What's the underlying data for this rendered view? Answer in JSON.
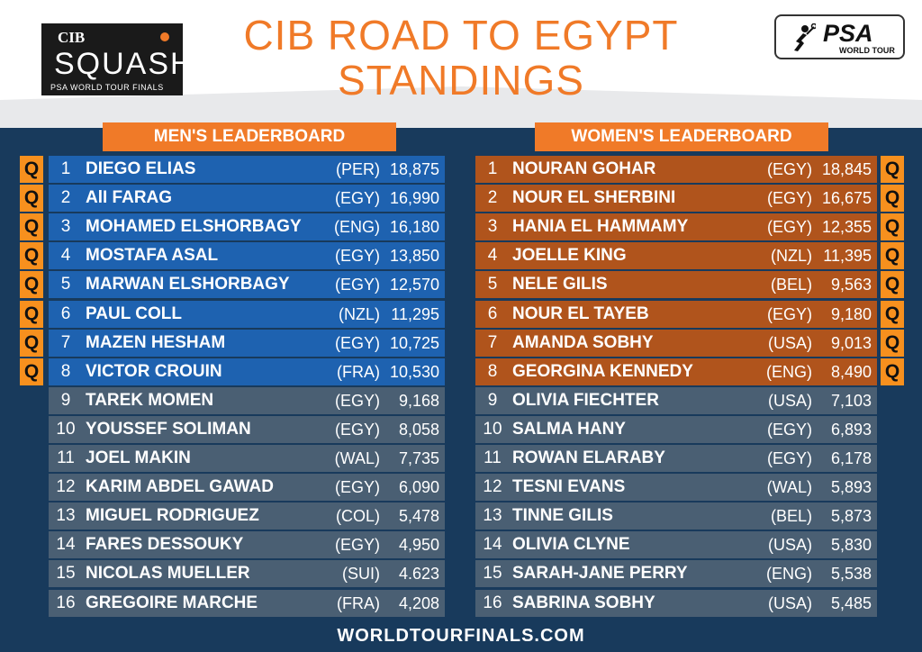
{
  "header": {
    "title_line1": "CIB ROAD TO EGYPT",
    "title_line2": "STANDINGS",
    "cib_logo": {
      "brand": "CIB",
      "word": "SQUASH",
      "subtitle": "PSA WORLD TOUR FINALS"
    },
    "psa_logo": {
      "brand": "PSA",
      "subtitle": "WORLD TOUR"
    }
  },
  "qualified_label": "Q",
  "men": {
    "title": "MEN'S LEADERBOARD",
    "rows": [
      {
        "rank": "1",
        "name": "DIEGO ELIAS",
        "country": "(PER)",
        "points": "18,875",
        "qualified": true
      },
      {
        "rank": "2",
        "name": "AlI FARAG",
        "country": "(EGY)",
        "points": "16,990",
        "qualified": true
      },
      {
        "rank": "3",
        "name": "MOHAMED ELSHORBAGY",
        "country": "(ENG)",
        "points": "16,180",
        "qualified": true
      },
      {
        "rank": "4",
        "name": "MOSTAFA ASAL",
        "country": "(EGY)",
        "points": "13,850",
        "qualified": true
      },
      {
        "rank": "5",
        "name": "MARWAN ELSHORBAGY",
        "country": "(EGY)",
        "points": "12,570",
        "qualified": true
      },
      {
        "rank": "6",
        "name": "PAUL COLL",
        "country": "(NZL)",
        "points": "11,295",
        "qualified": true
      },
      {
        "rank": "7",
        "name": "MAZEN HESHAM",
        "country": "(EGY)",
        "points": "10,725",
        "qualified": true
      },
      {
        "rank": "8",
        "name": "VICTOR CROUIN",
        "country": "(FRA)",
        "points": "10,530",
        "qualified": true
      },
      {
        "rank": "9",
        "name": "TAREK MOMEN",
        "country": "(EGY)",
        "points": "9,168",
        "qualified": false
      },
      {
        "rank": "10",
        "name": "YOUSSEF SOLIMAN",
        "country": "(EGY)",
        "points": "8,058",
        "qualified": false
      },
      {
        "rank": "11",
        "name": "JOEL MAKIN",
        "country": "(WAL)",
        "points": "7,735",
        "qualified": false
      },
      {
        "rank": "12",
        "name": "KARIM ABDEL GAWAD",
        "country": "(EGY)",
        "points": "6,090",
        "qualified": false
      },
      {
        "rank": "13",
        "name": "MIGUEL RODRIGUEZ",
        "country": "(COL)",
        "points": "5,478",
        "qualified": false
      },
      {
        "rank": "14",
        "name": "FARES DESSOUKY",
        "country": "(EGY)",
        "points": "4,950",
        "qualified": false
      },
      {
        "rank": "15",
        "name": "NICOLAS MUELLER",
        "country": "(SUI)",
        "points": "4.623",
        "qualified": false
      },
      {
        "rank": "16",
        "name": "GREGOIRE MARCHE",
        "country": "(FRA)",
        "points": "4,208",
        "qualified": false
      }
    ]
  },
  "women": {
    "title": "WOMEN'S LEADERBOARD",
    "rows": [
      {
        "rank": "1",
        "name": "NOURAN GOHAR",
        "country": "(EGY)",
        "points": "18,845",
        "qualified": true
      },
      {
        "rank": "2",
        "name": "NOUR EL SHERBINI",
        "country": "(EGY)",
        "points": "16,675",
        "qualified": true
      },
      {
        "rank": "3",
        "name": "HANIA EL HAMMAMY",
        "country": "(EGY)",
        "points": "12,355",
        "qualified": true
      },
      {
        "rank": "4",
        "name": "JOELLE KING",
        "country": "(NZL)",
        "points": "11,395",
        "qualified": true
      },
      {
        "rank": "5",
        "name": "NELE GILIS",
        "country": "(BEL)",
        "points": "9,563",
        "qualified": true
      },
      {
        "rank": "6",
        "name": "NOUR EL TAYEB",
        "country": "(EGY)",
        "points": "9,180",
        "qualified": true
      },
      {
        "rank": "7",
        "name": "AMANDA SOBHY",
        "country": "(USA)",
        "points": "9,013",
        "qualified": true
      },
      {
        "rank": "8",
        "name": "GEORGINA KENNEDY",
        "country": "(ENG)",
        "points": "8,490",
        "qualified": true
      },
      {
        "rank": "9",
        "name": "OLIVIA FIECHTER",
        "country": "(USA)",
        "points": "7,103",
        "qualified": false
      },
      {
        "rank": "10",
        "name": "SALMA HANY",
        "country": "(EGY)",
        "points": "6,893",
        "qualified": false
      },
      {
        "rank": "11",
        "name": "ROWAN ELARABY",
        "country": "(EGY)",
        "points": "6,178",
        "qualified": false
      },
      {
        "rank": "12",
        "name": "TESNI EVANS",
        "country": "(WAL)",
        "points": "5,893",
        "qualified": false
      },
      {
        "rank": "13",
        "name": "TINNE GILIS",
        "country": "(BEL)",
        "points": "5,873",
        "qualified": false
      },
      {
        "rank": "14",
        "name": "OLIVIA CLYNE",
        "country": "(USA)",
        "points": "5,830",
        "qualified": false
      },
      {
        "rank": "15",
        "name": "SARAH-JANE PERRY",
        "country": "(ENG)",
        "points": "5,538",
        "qualified": false
      },
      {
        "rank": "16",
        "name": "SABRINA SOBHY",
        "country": "(USA)",
        "points": "5,485",
        "qualified": false
      }
    ]
  },
  "footer": {
    "url": "WORLDTOURFINALS.COM"
  },
  "colors": {
    "accent_orange": "#f07a28",
    "men_qualified_row": "#1e62b0",
    "women_qualified_row": "#b0541c",
    "unqualified_row": "#4a5f73",
    "background_navy": "#183a5c"
  }
}
